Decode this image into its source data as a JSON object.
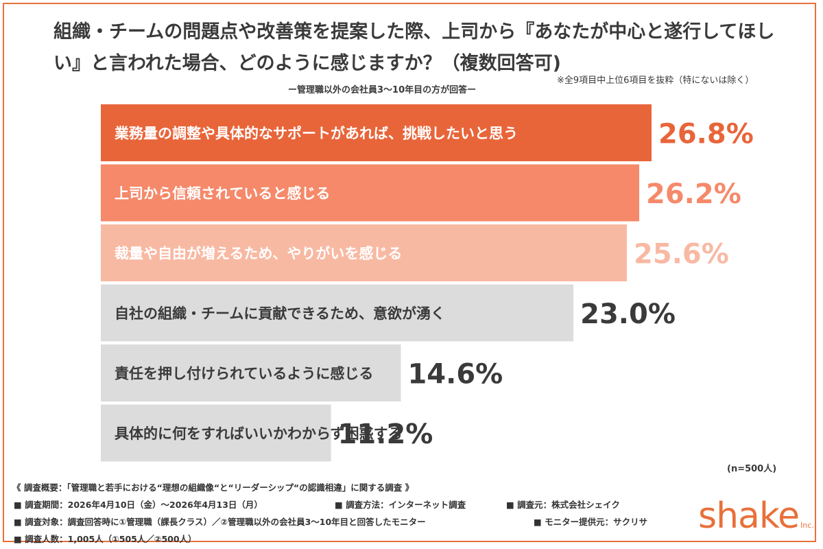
{
  "title": "組織・チームの問題点や改善策を提案した際、上司から『あなたが中心と遂行してほしい』と言われた場合、どのように感じますか？（複数回答可)",
  "subtitle": "ー管理職以外の会社員3〜10年目の方が回答ー",
  "note": "※全9項目中上位6項目を抜粋（特にないは除く）",
  "sample_note": "(n=500人)",
  "chart_data": {
    "type": "bar",
    "orientation": "horizontal",
    "categories": [
      "業務量の調整や具体的なサポートがあれば、挑戦したいと思う",
      "上司から信頼されていると感じる",
      "裁量や自由が増えるため、やりがいを感じる",
      "自社の組織・チームに貢献できるため、意欲が湧く",
      "責任を押し付けられているように感じる",
      "具体的に何をすればいいかわからず困惑する"
    ],
    "values": [
      26.8,
      26.2,
      25.6,
      23.0,
      14.6,
      11.2
    ],
    "value_labels": [
      "26.8%",
      "26.2%",
      "25.6%",
      "23.0%",
      "14.6%",
      "11.2%"
    ],
    "bar_colors": [
      "#e8653a",
      "#f5896a",
      "#f8b9a3",
      "#dcdcdc",
      "#dcdcdc",
      "#dcdcdc"
    ],
    "label_colors": [
      "#ffffff",
      "#ffffff",
      "#ffffff",
      "#3a3a3a",
      "#3a3a3a",
      "#3a3a3a"
    ],
    "value_colors": [
      "#e8653a",
      "#f5896a",
      "#f8b9a3",
      "#3a3a3a",
      "#3a3a3a",
      "#3a3a3a"
    ],
    "xlim": [
      0,
      26.8
    ],
    "grid": false
  },
  "footer": {
    "overview": "《 調査概要：「管理職と若手における“理想の組織像“と“リーダーシップ“の認識相違」に関する調査 》",
    "period": "■ 調査期間：2026年4月10日（金）〜2026年4月13日（月）",
    "method": "■ 調査方法：インターネット調査",
    "source": "■ 調査元：株式会社シェイク",
    "target": "■ 調査対象：調査回答時に①管理職（課長クラス）／②管理職以外の会社員3〜10年目と回答したモニター",
    "provider": "■ モニター提供元：サクリサ",
    "count": "■ 調査人数：1,005人（①505人／②500人）"
  },
  "logo": {
    "text": "shake",
    "suffix": "Inc."
  }
}
